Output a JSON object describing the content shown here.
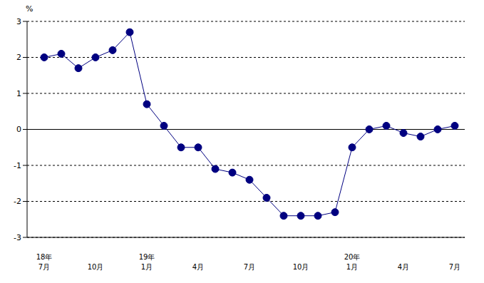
{
  "chart_data": {
    "type": "line",
    "ylabel": "%",
    "categories": [
      "18年\n7月",
      null,
      null,
      "10月",
      null,
      null,
      "19年\n1月",
      null,
      null,
      "4月",
      null,
      null,
      "7月",
      null,
      null,
      "10月",
      null,
      null,
      "20年\n1月",
      null,
      null,
      "4月",
      null,
      null,
      "7月"
    ],
    "values": [
      2.0,
      2.1,
      1.7,
      2.0,
      2.2,
      2.7,
      0.7,
      0.1,
      -0.5,
      -0.5,
      -1.1,
      -1.2,
      -1.4,
      -1.9,
      -2.4,
      -2.4,
      -2.4,
      -2.3,
      -0.5,
      0.0,
      0.1,
      -0.1,
      -0.2,
      0.0,
      0.1
    ],
    "color": "#000080",
    "marker": "circle",
    "ylim": [
      -3,
      3
    ],
    "yticks": [
      -3,
      -2,
      -1,
      0,
      1,
      2,
      3
    ],
    "grid": true
  }
}
